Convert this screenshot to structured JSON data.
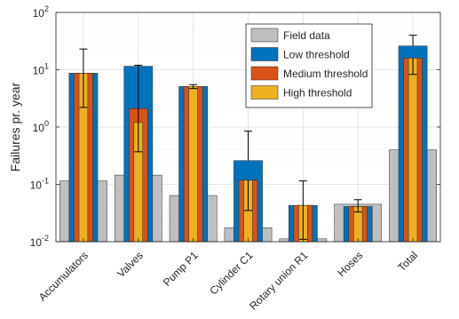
{
  "chart_data": {
    "type": "bar",
    "ylabel": "Failures pr. year",
    "xlabel": "",
    "yscale": "log",
    "ylim": [
      0.01,
      100
    ],
    "grid": true,
    "legend_position": "top-right",
    "y_ticks": [
      {
        "value": 0.01,
        "base": "10",
        "exp": "-2"
      },
      {
        "value": 0.1,
        "base": "10",
        "exp": "-1"
      },
      {
        "value": 1,
        "base": "10",
        "exp": "0"
      },
      {
        "value": 10,
        "base": "10",
        "exp": "1"
      },
      {
        "value": 100,
        "base": "10",
        "exp": "2"
      }
    ],
    "categories": [
      "Accumulators",
      "Valves",
      "Pump P1",
      "Cylinder C1",
      "Rotary union R1",
      "Hoses",
      "Total"
    ],
    "field_data": {
      "name": "Field data",
      "color": "#bfbfbf",
      "values": [
        0.115,
        0.145,
        0.064,
        0.0175,
        0.0112,
        0.045,
        0.4
      ]
    },
    "series": [
      {
        "name": "Low threshold",
        "color": "#0072bd",
        "values": [
          8.7,
          11.5,
          5.1,
          0.26,
          0.043,
          0.041,
          26
        ],
        "error_low": [
          null,
          0.37,
          null,
          null,
          null,
          null,
          null
        ],
        "error_high": [
          null,
          12.0,
          null,
          0.85,
          null,
          null,
          40
        ]
      },
      {
        "name": "Medium threshold",
        "color": "#d95319",
        "values": [
          8.7,
          2.1,
          5.1,
          0.118,
          0.043,
          0.041,
          16
        ],
        "error_low": [
          2.2,
          null,
          4.7,
          0.035,
          0.011,
          0.033,
          8.3
        ],
        "error_high": [
          23,
          null,
          5.5,
          null,
          0.115,
          0.054,
          null
        ]
      },
      {
        "name": "High threshold",
        "color": "#edb120",
        "values": [
          8.7,
          1.2,
          5.1,
          0.118,
          0.043,
          0.041,
          16
        ],
        "error_low": [
          null,
          null,
          null,
          null,
          null,
          null,
          null
        ],
        "error_high": [
          null,
          null,
          null,
          null,
          null,
          null,
          null
        ]
      }
    ]
  }
}
